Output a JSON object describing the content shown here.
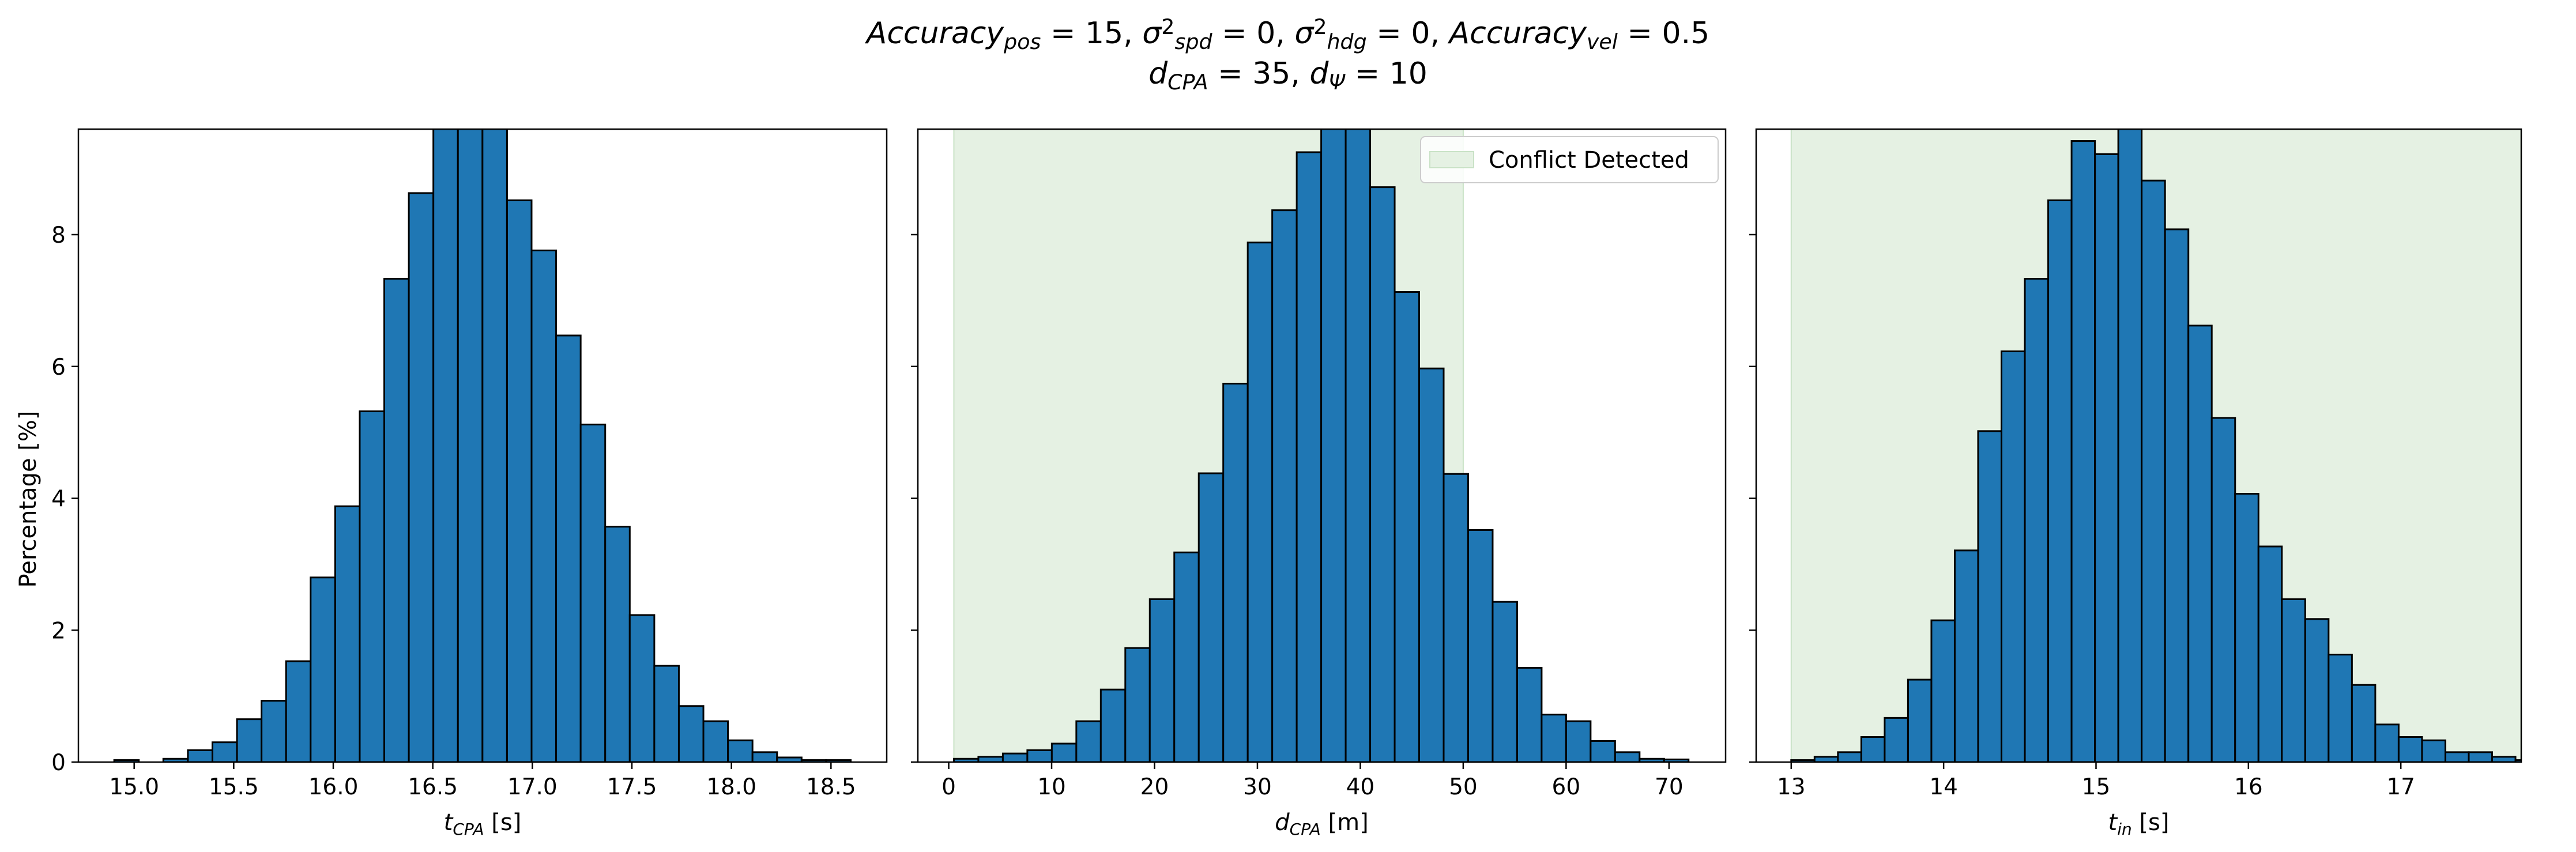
{
  "figure": {
    "title_line1_parts": [
      {
        "t": "Accuracy",
        "s": "i"
      },
      {
        "t": "pos",
        "s": "sub"
      },
      {
        "t": " = 15, ",
        "s": "n"
      },
      {
        "t": "σ",
        "s": "i"
      },
      {
        "t": "2",
        "s": "sup"
      },
      {
        "t": "spd",
        "s": "sub"
      },
      {
        "t": " = 0, ",
        "s": "n"
      },
      {
        "t": "σ",
        "s": "i"
      },
      {
        "t": "2",
        "s": "sup"
      },
      {
        "t": "hdg",
        "s": "sub"
      },
      {
        "t": " = 0, ",
        "s": "n"
      },
      {
        "t": "Accuracy",
        "s": "i"
      },
      {
        "t": "vel",
        "s": "sub"
      },
      {
        "t": " = 0.5",
        "s": "n"
      }
    ],
    "title_line2_parts": [
      {
        "t": "d",
        "s": "i"
      },
      {
        "t": "CPA",
        "s": "sub"
      },
      {
        "t": " = 35, ",
        "s": "n"
      },
      {
        "t": "d",
        "s": "i"
      },
      {
        "t": "Ψ",
        "s": "sub"
      },
      {
        "t": " = 10",
        "s": "n"
      }
    ],
    "ylabel": "Percentage [%]",
    "legend_label": "Conflict Detected",
    "colors": {
      "bar": "#1f77b4",
      "edge": "#000000",
      "shade": "#e5f1e3",
      "shade_edge": "#c9e2c6"
    }
  },
  "chart_data": [
    {
      "type": "bar",
      "xlabel_parts": [
        {
          "t": "t",
          "s": "i"
        },
        {
          "t": "CPA",
          "s": "sub"
        },
        {
          "t": " [s]",
          "s": "n"
        }
      ],
      "xlim": [
        14.72,
        18.78
      ],
      "ylim": [
        0,
        9.6
      ],
      "xticks": [
        15.0,
        15.5,
        16.0,
        16.5,
        17.0,
        17.5,
        18.0,
        18.5
      ],
      "xtick_labels": [
        "15.0",
        "15.5",
        "16.0",
        "16.5",
        "17.0",
        "17.5",
        "18.0",
        "18.5"
      ],
      "yticks": [
        0,
        2,
        4,
        6,
        8
      ],
      "ytick_labels": [
        "0",
        "2",
        "4",
        "6",
        "8"
      ],
      "bins_start": 14.9,
      "bin_width": 0.1233,
      "values": [
        0.03,
        0.0,
        0.05,
        0.18,
        0.3,
        0.65,
        0.93,
        1.53,
        2.8,
        3.88,
        5.32,
        7.33,
        8.63,
        9.9,
        9.9,
        9.9,
        8.52,
        7.76,
        6.47,
        5.12,
        3.57,
        2.23,
        1.46,
        0.85,
        0.62,
        0.33,
        0.15,
        0.07,
        0.03,
        0.03
      ],
      "shade_x": null,
      "legend": false
    },
    {
      "type": "bar",
      "xlabel_parts": [
        {
          "t": "d",
          "s": "i"
        },
        {
          "t": "CPA",
          "s": "sub"
        },
        {
          "t": " [m]",
          "s": "n"
        }
      ],
      "xlim": [
        -3.0,
        75.5
      ],
      "ylim": [
        0,
        9.6
      ],
      "xticks": [
        0,
        10,
        20,
        30,
        40,
        50,
        60,
        70
      ],
      "xtick_labels": [
        "0",
        "10",
        "20",
        "30",
        "40",
        "50",
        "60",
        "70"
      ],
      "yticks": [
        0,
        2,
        4,
        6,
        8
      ],
      "ytick_labels": [
        "",
        "",
        "",
        "",
        ""
      ],
      "bins_start": 0.5,
      "bin_width": 2.38,
      "values": [
        0.05,
        0.08,
        0.13,
        0.18,
        0.28,
        0.62,
        1.1,
        1.73,
        2.47,
        3.18,
        4.38,
        5.74,
        7.88,
        8.37,
        9.25,
        9.9,
        9.67,
        8.72,
        7.13,
        5.97,
        4.37,
        3.52,
        2.43,
        1.43,
        0.72,
        0.62,
        0.32,
        0.15,
        0.05,
        0.04
      ],
      "shade_x": [
        0.5,
        50
      ],
      "legend": true
    },
    {
      "type": "bar",
      "xlabel_parts": [
        {
          "t": "t",
          "s": "i"
        },
        {
          "t": "in",
          "s": "sub"
        },
        {
          "t": " [s]",
          "s": "n"
        }
      ],
      "xlim": [
        12.77,
        17.79
      ],
      "ylim": [
        0,
        9.6
      ],
      "xticks": [
        13,
        14,
        15,
        16,
        17
      ],
      "xtick_labels": [
        "13",
        "14",
        "15",
        "16",
        "17"
      ],
      "yticks": [
        0,
        2,
        4,
        6,
        8
      ],
      "ytick_labels": [
        "",
        "",
        "",
        "",
        ""
      ],
      "bins_start": 13.0,
      "bin_width": 0.1533,
      "values": [
        0.03,
        0.08,
        0.15,
        0.38,
        0.67,
        1.25,
        2.15,
        3.21,
        5.02,
        6.23,
        7.33,
        8.52,
        9.42,
        9.22,
        9.9,
        8.82,
        8.08,
        6.62,
        5.22,
        4.07,
        3.27,
        2.47,
        2.17,
        1.63,
        1.17,
        0.57,
        0.38,
        0.33,
        0.15,
        0.15,
        0.08,
        0.03
      ],
      "shade_x": [
        13.0,
        17.79
      ],
      "legend": false
    }
  ]
}
